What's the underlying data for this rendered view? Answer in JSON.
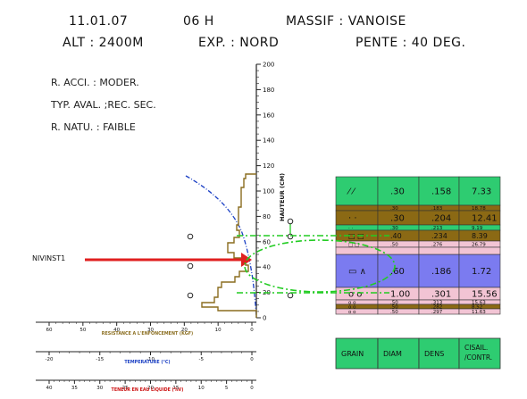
{
  "header": {
    "date": "11.01.07",
    "hour": "06 H",
    "massif": "MASSIF : VANOISE",
    "alt": "ALT : 2400M",
    "exp": "EXP. : NORD",
    "pente": "PENTE : 40 DEG."
  },
  "info": {
    "r_acci": "R. ACCI. :   MODER.",
    "typ_aval": "TYP. AVAL.  ;REC. SEC.",
    "r_natu": "R. NATU. :   FAIBLE"
  },
  "nivinst_label": "NIVINST1",
  "height_axis": {
    "label": "HAUTEUR (CM)",
    "ticks": [
      "200",
      "180",
      "160",
      "140",
      "120",
      "100",
      "80",
      "60",
      "40",
      "20",
      "0"
    ]
  },
  "bottom_axes": [
    {
      "label": "RESISTANCE A L'ENFONCEMENT (KGF)",
      "ticks": [
        "60",
        "50",
        "40",
        "30",
        "20",
        "10",
        "0"
      ],
      "color": "#8a6d1e"
    },
    {
      "label": "TEMPERATURE (°C)",
      "ticks": [
        "-20",
        "-15",
        "-10",
        "-5",
        "0"
      ],
      "color": "#1a3fc4"
    },
    {
      "label": "TENEUR EN EAU LIQUIDE (%V)",
      "ticks": [
        "40",
        "35",
        "30",
        "25",
        "20",
        "15",
        "10",
        "5",
        "0"
      ],
      "color": "#cc1111"
    }
  ],
  "layers": [
    {
      "grain": "⁄ ⁄",
      "diam": ".30",
      "dens": ".158",
      "cis": "7.33",
      "color": "#2ecc71"
    },
    {
      "grain": "",
      "diam": ".30",
      "dens": ".183",
      "cis": "18.78",
      "color": "#8b6914"
    },
    {
      "grain": "·  ·",
      "diam": ".30",
      "dens": ".204",
      "cis": "12.41",
      "color": "#8b6914"
    },
    {
      "grain": "·  ·",
      "diam": ".30",
      "dens": ".213",
      "cis": "9.19",
      "color": "#2ecc71"
    },
    {
      "grain": "□ □",
      "diam": ".40",
      "dens": ".234",
      "cis": "8.39",
      "color": "#8b6914"
    },
    {
      "grain": "□ □",
      "diam": ".50",
      "dens": ".276",
      "cis": "26.79",
      "color": "#f2c4d4"
    },
    {
      "grain": "▭ ∧",
      "diam": ".60",
      "dens": ".186",
      "cis": "1.72",
      "color": "#7b7bf0"
    },
    {
      "grain": "o  o",
      "diam": "1.00",
      "dens": ".301",
      "cis": "15.56",
      "color": "#f2c4d4"
    },
    {
      "grain": "o  o",
      "diam": ".50",
      "dens": ".313",
      "cis": "15.63",
      "color": "#f2c4d4"
    },
    {
      "grain": "o  o",
      "diam": ".50",
      "dens": ".282",
      "cis": "8.52",
      "color": "#8b6914"
    },
    {
      "grain": "o  o",
      "diam": ".50",
      "dens": ".297",
      "cis": "11.63",
      "color": "#f2c4d4"
    }
  ],
  "legend": {
    "grain": "GRAIN",
    "diam": "DIAM",
    "dens": "DENS",
    "cis": "CISAIL.\n/CONTR."
  },
  "colors": {
    "ram_profile": "#8a6d1e",
    "temperature": "#1a3fc4",
    "nivinst_arrow": "#e02020",
    "stability": "#22cc22",
    "legend_bg": "#2ecc71"
  }
}
